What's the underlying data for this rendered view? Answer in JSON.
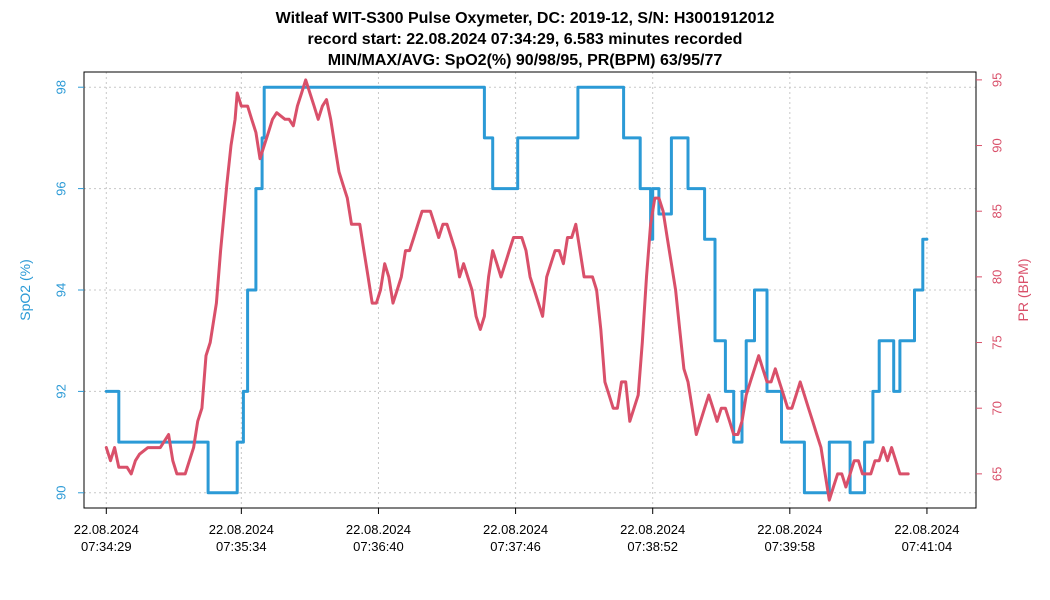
{
  "chart_data": {
    "type": "line",
    "title_lines": [
      "Witleaf WIT-S300 Pulse Oxymeter, DC: 2019-12, S/N: H3001912012",
      "record start: 22.08.2024 07:34:29, 6.583 minutes recorded",
      "MIN/MAX/AVG: SpO2(%) 90/98/95, PR(BPM) 63/95/77"
    ],
    "xlabel": "",
    "x_unit": "seconds since record start",
    "x_range": [
      0,
      395
    ],
    "x_ticks": [
      {
        "t": 0,
        "date": "22.08.2024",
        "time": "07:34:29"
      },
      {
        "t": 65,
        "date": "22.08.2024",
        "time": "07:35:34"
      },
      {
        "t": 131,
        "date": "22.08.2024",
        "time": "07:36:40"
      },
      {
        "t": 197,
        "date": "22.08.2024",
        "time": "07:37:46"
      },
      {
        "t": 263,
        "date": "22.08.2024",
        "time": "07:38:52"
      },
      {
        "t": 329,
        "date": "22.08.2024",
        "time": "07:39:58"
      },
      {
        "t": 395,
        "date": "22.08.2024",
        "time": "07:41:04"
      }
    ],
    "y_left": {
      "label": "SpO2 (%)",
      "range": [
        89.7,
        98.3
      ],
      "ticks": [
        90,
        92,
        94,
        96,
        98
      ],
      "color": "#2b9ad6"
    },
    "y_right": {
      "label": "PR (BPM)",
      "range": [
        62.4,
        95.6
      ],
      "ticks": [
        65,
        70,
        75,
        80,
        85,
        90,
        95
      ],
      "color": "#d9506a"
    },
    "grid": true,
    "series": [
      {
        "name": "SpO2 (%)",
        "axis": "left",
        "color": "#2b9ad6",
        "step": true,
        "points": [
          [
            0,
            92
          ],
          [
            6,
            91
          ],
          [
            49,
            90
          ],
          [
            63,
            91
          ],
          [
            66,
            92
          ],
          [
            68,
            94
          ],
          [
            72,
            96
          ],
          [
            75,
            97
          ],
          [
            76,
            98
          ],
          [
            182,
            97
          ],
          [
            186,
            96
          ],
          [
            198,
            97
          ],
          [
            227,
            98
          ],
          [
            249,
            97
          ],
          [
            257,
            96
          ],
          [
            262,
            95
          ],
          [
            263,
            96
          ],
          [
            266,
            95.5
          ],
          [
            272,
            97
          ],
          [
            280,
            96
          ],
          [
            288,
            95
          ],
          [
            293,
            93
          ],
          [
            298,
            92
          ],
          [
            302,
            91
          ],
          [
            306,
            92
          ],
          [
            308,
            93
          ],
          [
            312,
            94
          ],
          [
            318,
            92
          ],
          [
            325,
            91
          ],
          [
            336,
            90
          ],
          [
            348,
            91
          ],
          [
            358,
            90
          ],
          [
            365,
            91
          ],
          [
            369,
            92
          ],
          [
            372,
            93
          ],
          [
            379,
            92
          ],
          [
            382,
            93
          ],
          [
            385,
            93
          ],
          [
            389,
            94
          ],
          [
            393,
            95
          ],
          [
            395,
            95
          ]
        ]
      },
      {
        "name": "PR (BPM)",
        "axis": "right",
        "color": "#d9506a",
        "step": false,
        "points": [
          [
            0,
            67
          ],
          [
            2,
            66
          ],
          [
            4,
            67
          ],
          [
            6,
            65.5
          ],
          [
            10,
            65.5
          ],
          [
            12,
            65
          ],
          [
            14,
            66
          ],
          [
            16,
            66.5
          ],
          [
            20,
            67
          ],
          [
            26,
            67
          ],
          [
            30,
            68
          ],
          [
            32,
            66
          ],
          [
            34,
            65
          ],
          [
            38,
            65
          ],
          [
            40,
            66
          ],
          [
            42,
            67
          ],
          [
            44,
            69
          ],
          [
            46,
            70
          ],
          [
            48,
            74
          ],
          [
            50,
            75
          ],
          [
            53,
            78
          ],
          [
            55,
            82
          ],
          [
            58,
            87
          ],
          [
            60,
            90
          ],
          [
            62,
            92
          ],
          [
            63,
            94
          ],
          [
            65,
            93
          ],
          [
            68,
            93
          ],
          [
            70,
            92
          ],
          [
            72,
            91
          ],
          [
            74,
            89
          ],
          [
            76,
            90
          ],
          [
            78,
            91
          ],
          [
            80,
            92
          ],
          [
            82,
            92.5
          ],
          [
            86,
            92
          ],
          [
            88,
            92
          ],
          [
            90,
            91.5
          ],
          [
            92,
            93
          ],
          [
            94,
            94
          ],
          [
            96,
            95
          ],
          [
            98,
            94
          ],
          [
            100,
            93
          ],
          [
            102,
            92
          ],
          [
            104,
            93
          ],
          [
            106,
            93.5
          ],
          [
            108,
            92
          ],
          [
            110,
            90
          ],
          [
            112,
            88
          ],
          [
            114,
            87
          ],
          [
            116,
            86
          ],
          [
            118,
            84
          ],
          [
            120,
            84
          ],
          [
            122,
            84
          ],
          [
            124,
            82
          ],
          [
            126,
            80
          ],
          [
            128,
            78
          ],
          [
            130,
            78
          ],
          [
            132,
            79
          ],
          [
            134,
            81
          ],
          [
            136,
            80
          ],
          [
            138,
            78
          ],
          [
            140,
            79
          ],
          [
            142,
            80
          ],
          [
            144,
            82
          ],
          [
            146,
            82
          ],
          [
            148,
            83
          ],
          [
            150,
            84
          ],
          [
            152,
            85
          ],
          [
            154,
            85
          ],
          [
            156,
            85
          ],
          [
            158,
            84
          ],
          [
            160,
            83
          ],
          [
            162,
            84
          ],
          [
            164,
            84
          ],
          [
            166,
            83
          ],
          [
            168,
            82
          ],
          [
            170,
            80
          ],
          [
            172,
            81
          ],
          [
            174,
            80
          ],
          [
            176,
            79
          ],
          [
            178,
            77
          ],
          [
            180,
            76
          ],
          [
            182,
            77
          ],
          [
            184,
            80
          ],
          [
            186,
            82
          ],
          [
            188,
            81
          ],
          [
            190,
            80
          ],
          [
            192,
            81
          ],
          [
            194,
            82
          ],
          [
            196,
            83
          ],
          [
            198,
            83
          ],
          [
            200,
            83
          ],
          [
            202,
            82
          ],
          [
            204,
            80
          ],
          [
            206,
            79
          ],
          [
            208,
            78
          ],
          [
            210,
            77
          ],
          [
            212,
            80
          ],
          [
            214,
            81
          ],
          [
            216,
            82
          ],
          [
            218,
            82
          ],
          [
            220,
            81
          ],
          [
            222,
            83
          ],
          [
            224,
            83
          ],
          [
            226,
            84
          ],
          [
            228,
            82
          ],
          [
            230,
            80
          ],
          [
            232,
            80
          ],
          [
            234,
            80
          ],
          [
            236,
            79
          ],
          [
            238,
            76
          ],
          [
            240,
            72
          ],
          [
            242,
            71
          ],
          [
            244,
            70
          ],
          [
            246,
            70
          ],
          [
            248,
            72
          ],
          [
            250,
            72
          ],
          [
            252,
            69
          ],
          [
            254,
            70
          ],
          [
            256,
            71
          ],
          [
            258,
            75
          ],
          [
            260,
            80
          ],
          [
            262,
            84
          ],
          [
            264,
            86
          ],
          [
            266,
            86
          ],
          [
            268,
            85
          ],
          [
            270,
            83
          ],
          [
            272,
            81
          ],
          [
            274,
            79
          ],
          [
            276,
            76
          ],
          [
            278,
            73
          ],
          [
            280,
            72
          ],
          [
            282,
            70
          ],
          [
            284,
            68
          ],
          [
            286,
            69
          ],
          [
            288,
            70
          ],
          [
            290,
            71
          ],
          [
            292,
            70
          ],
          [
            294,
            69
          ],
          [
            296,
            70
          ],
          [
            298,
            70
          ],
          [
            300,
            69
          ],
          [
            302,
            68
          ],
          [
            304,
            68
          ],
          [
            306,
            69
          ],
          [
            308,
            71
          ],
          [
            310,
            72
          ],
          [
            312,
            73
          ],
          [
            314,
            74
          ],
          [
            316,
            73
          ],
          [
            318,
            72
          ],
          [
            320,
            72
          ],
          [
            322,
            73
          ],
          [
            324,
            72
          ],
          [
            326,
            71
          ],
          [
            328,
            70
          ],
          [
            330,
            70
          ],
          [
            332,
            71
          ],
          [
            334,
            72
          ],
          [
            336,
            71
          ],
          [
            338,
            70
          ],
          [
            340,
            69
          ],
          [
            342,
            68
          ],
          [
            344,
            67
          ],
          [
            346,
            65
          ],
          [
            348,
            63
          ],
          [
            350,
            64
          ],
          [
            352,
            65
          ],
          [
            354,
            65
          ],
          [
            356,
            64
          ],
          [
            358,
            65
          ],
          [
            360,
            66
          ],
          [
            362,
            66
          ],
          [
            364,
            65
          ],
          [
            366,
            65
          ],
          [
            368,
            65
          ],
          [
            370,
            66
          ],
          [
            372,
            66
          ],
          [
            374,
            67
          ],
          [
            376,
            66
          ],
          [
            378,
            67
          ],
          [
            380,
            66
          ],
          [
            382,
            65
          ],
          [
            384,
            65
          ],
          [
            386,
            65
          ]
        ]
      }
    ]
  }
}
